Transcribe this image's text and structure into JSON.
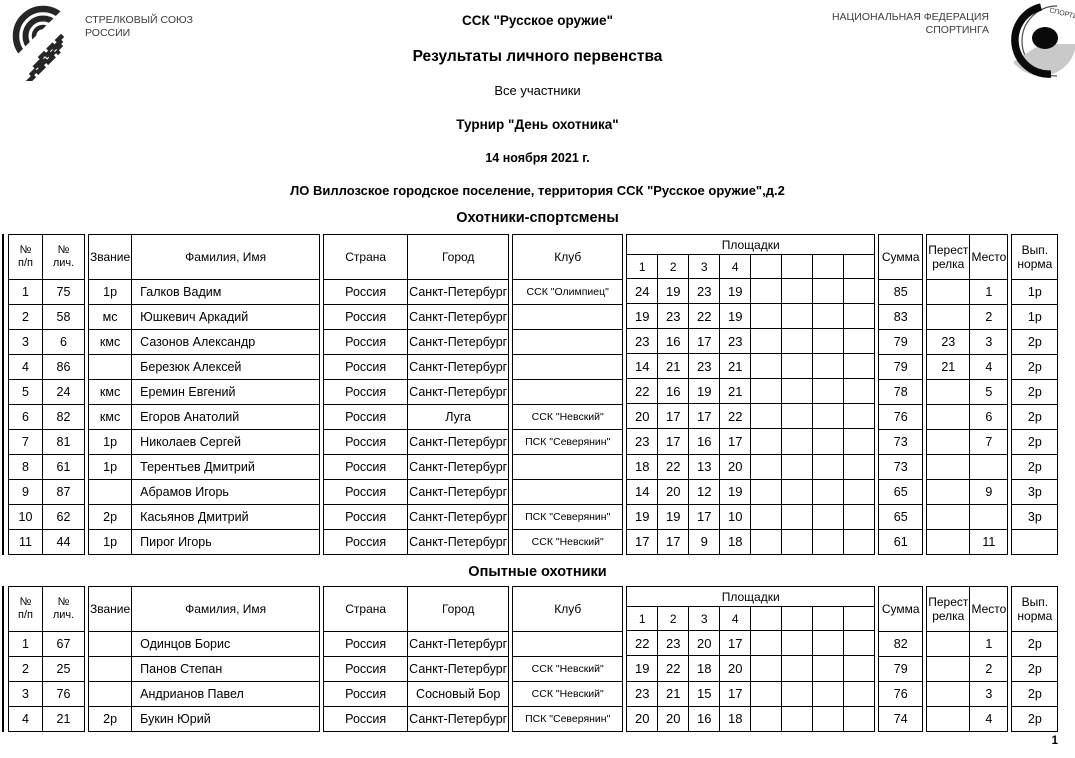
{
  "header": {
    "left_org": [
      "СТРЕЛКОВЫЙ СОЮЗ",
      "РОССИИ"
    ],
    "right_org": [
      "НАЦИОНАЛЬНАЯ ФЕДЕРАЦИЯ",
      "СПОРТИНГА"
    ],
    "title": "ССК \"Русское оружие\"",
    "subtitle": "Результаты личного первенства",
    "participants": "Все участники",
    "tournament": "Турнир \"День охотника\"",
    "date": "14 ноября 2021 г.",
    "venue": "ЛО Виллозское городское поселение, территория ССК \"Русское оружие\",д.2"
  },
  "page_number": "1",
  "columns": {
    "num": [
      "№",
      "п/п"
    ],
    "personal_num": [
      "№",
      "лич."
    ],
    "rank": [
      "Звание"
    ],
    "name": [
      "Фамилия, Имя"
    ],
    "country": [
      "Страна"
    ],
    "city": [
      "Город"
    ],
    "club": [
      "Клуб"
    ],
    "stations_group": [
      "Площадки"
    ],
    "station_subs": [
      "1",
      "2",
      "3",
      "4",
      "",
      "",
      "",
      ""
    ],
    "sum": [
      "Сумма"
    ],
    "shootoff": [
      "Перест",
      "релка"
    ],
    "place": [
      "Место"
    ],
    "norm": [
      "Вып.",
      "норма"
    ]
  },
  "tables": [
    {
      "title": "Охотники-спортсмены",
      "rows": [
        {
          "num": "1",
          "id": "75",
          "rank": "1р",
          "name": "Галков Вадим",
          "country": "Россия",
          "city": "Санкт-Петербург",
          "club": "ССК \"Олимпиец\"",
          "stations": [
            "24",
            "19",
            "23",
            "19",
            "",
            "",
            "",
            ""
          ],
          "sum": "85",
          "shootoff": "",
          "place": "1",
          "norm": "1р"
        },
        {
          "num": "2",
          "id": "58",
          "rank": "мс",
          "name": "Юшкевич Аркадий",
          "country": "Россия",
          "city": "Санкт-Петербург",
          "club": "",
          "stations": [
            "19",
            "23",
            "22",
            "19",
            "",
            "",
            "",
            ""
          ],
          "sum": "83",
          "shootoff": "",
          "place": "2",
          "norm": "1р"
        },
        {
          "num": "3",
          "id": "6",
          "rank": "кмс",
          "name": "Сазонов Александр",
          "country": "Россия",
          "city": "Санкт-Петербург",
          "club": "",
          "stations": [
            "23",
            "16",
            "17",
            "23",
            "",
            "",
            "",
            ""
          ],
          "sum": "79",
          "shootoff": "23",
          "place": "3",
          "norm": "2р"
        },
        {
          "num": "4",
          "id": "86",
          "rank": "",
          "name": "Березюк Алексей",
          "country": "Россия",
          "city": "Санкт-Петербург",
          "club": "",
          "stations": [
            "14",
            "21",
            "23",
            "21",
            "",
            "",
            "",
            ""
          ],
          "sum": "79",
          "shootoff": "21",
          "place": "4",
          "norm": "2р"
        },
        {
          "num": "5",
          "id": "24",
          "rank": "кмс",
          "name": "Еремин Евгений",
          "country": "Россия",
          "city": "Санкт-Петербург",
          "club": "",
          "stations": [
            "22",
            "16",
            "19",
            "21",
            "",
            "",
            "",
            ""
          ],
          "sum": "78",
          "shootoff": "",
          "place": "5",
          "norm": "2р"
        },
        {
          "num": "6",
          "id": "82",
          "rank": "кмс",
          "name": "Егоров Анатолий",
          "country": "Россия",
          "city": "Луга",
          "club": "ССК \"Невский\"",
          "stations": [
            "20",
            "17",
            "17",
            "22",
            "",
            "",
            "",
            ""
          ],
          "sum": "76",
          "shootoff": "",
          "place": "6",
          "norm": "2р"
        },
        {
          "num": "7",
          "id": "81",
          "rank": "1р",
          "name": "Николаев Сергей",
          "country": "Россия",
          "city": "Санкт-Петербург",
          "club": "ПСК \"Северянин\"",
          "stations": [
            "23",
            "17",
            "16",
            "17",
            "",
            "",
            "",
            ""
          ],
          "sum": "73",
          "shootoff": "",
          "place": "7",
          "norm": "2р"
        },
        {
          "num": "8",
          "id": "61",
          "rank": "1р",
          "name": "Терентьев Дмитрий",
          "country": "Россия",
          "city": "Санкт-Петербург",
          "club": "",
          "stations": [
            "18",
            "22",
            "13",
            "20",
            "",
            "",
            "",
            ""
          ],
          "sum": "73",
          "shootoff": "",
          "place": "",
          "norm": "2р"
        },
        {
          "num": "9",
          "id": "87",
          "rank": "",
          "name": "Абрамов Игорь",
          "country": "Россия",
          "city": "Санкт-Петербург",
          "club": "",
          "stations": [
            "14",
            "20",
            "12",
            "19",
            "",
            "",
            "",
            ""
          ],
          "sum": "65",
          "shootoff": "",
          "place": "9",
          "norm": "3р"
        },
        {
          "num": "10",
          "id": "62",
          "rank": "2р",
          "name": "Касьянов Дмитрий",
          "country": "Россия",
          "city": "Санкт-Петербург",
          "club": "ПСК \"Северянин\"",
          "stations": [
            "19",
            "19",
            "17",
            "10",
            "",
            "",
            "",
            ""
          ],
          "sum": "65",
          "shootoff": "",
          "place": "",
          "norm": "3р"
        },
        {
          "num": "11",
          "id": "44",
          "rank": "1р",
          "name": "Пирог Игорь",
          "country": "Россия",
          "city": "Санкт-Петербург",
          "club": "ССК \"Невский\"",
          "stations": [
            "17",
            "17",
            "9",
            "18",
            "",
            "",
            "",
            ""
          ],
          "sum": "61",
          "shootoff": "",
          "place": "11",
          "norm": ""
        }
      ]
    },
    {
      "title": "Опытные охотники",
      "rows": [
        {
          "num": "1",
          "id": "67",
          "rank": "",
          "name": "Одинцов Борис",
          "country": "Россия",
          "city": "Санкт-Петербург",
          "club": "",
          "stations": [
            "22",
            "23",
            "20",
            "17",
            "",
            "",
            "",
            ""
          ],
          "sum": "82",
          "shootoff": "",
          "place": "1",
          "norm": "2р"
        },
        {
          "num": "2",
          "id": "25",
          "rank": "",
          "name": "Панов Степан",
          "country": "Россия",
          "city": "Санкт-Петербург",
          "club": "ССК \"Невский\"",
          "stations": [
            "19",
            "22",
            "18",
            "20",
            "",
            "",
            "",
            ""
          ],
          "sum": "79",
          "shootoff": "",
          "place": "2",
          "norm": "2р"
        },
        {
          "num": "3",
          "id": "76",
          "rank": "",
          "name": "Андрианов Павел",
          "country": "Россия",
          "city": "Сосновый Бор",
          "club": "ССК \"Невский\"",
          "stations": [
            "23",
            "21",
            "15",
            "17",
            "",
            "",
            "",
            ""
          ],
          "sum": "76",
          "shootoff": "",
          "place": "3",
          "norm": "2р"
        },
        {
          "num": "4",
          "id": "21",
          "rank": "2р",
          "name": "Букин Юрий",
          "country": "Россия",
          "city": "Санкт-Петербург",
          "club": "ПСК \"Северянин\"",
          "stations": [
            "20",
            "20",
            "16",
            "18",
            "",
            "",
            "",
            ""
          ],
          "sum": "74",
          "shootoff": "",
          "place": "4",
          "norm": "2р"
        }
      ]
    }
  ]
}
